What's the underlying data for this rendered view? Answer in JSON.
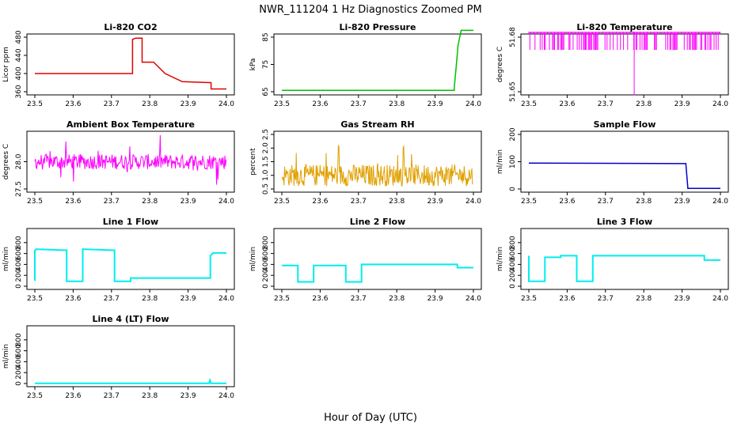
{
  "page": {
    "title": "NWR_111204  1 Hz Diagnostics Zoomed PM",
    "xlabel": "Hour of Day (UTC)"
  },
  "colors": {
    "red": "#e00000",
    "green": "#00c000",
    "magenta": "#ff00ff",
    "orange": "#e0a000",
    "blue": "#0000cc",
    "cyan": "#00eeee"
  },
  "chart_data": [
    {
      "type": "line",
      "title": "Li-820 CO2",
      "ylabel": "Licor ppm",
      "xlim": [
        23.5,
        24.0
      ],
      "ylim": [
        360,
        480
      ],
      "xticks": [
        "23.5",
        "23.6",
        "23.7",
        "23.8",
        "23.9",
        "24.0"
      ],
      "yticks": [
        "360",
        "400",
        "440",
        "480"
      ],
      "color": "#e00000",
      "series": [
        {
          "x": [
            23.5,
            23.755,
            23.755,
            23.763,
            23.763,
            23.78,
            23.78,
            23.81,
            23.81,
            23.84,
            23.84,
            23.885,
            23.885,
            23.96,
            23.96,
            24.0
          ],
          "y": [
            400,
            400,
            475,
            478,
            478,
            478,
            425,
            425,
            425,
            400,
            400,
            382,
            382,
            380,
            366,
            366
          ]
        }
      ]
    },
    {
      "type": "line",
      "title": "Li-820 Pressure",
      "ylabel": "kPa",
      "xlim": [
        23.5,
        24.0
      ],
      "ylim": [
        65,
        85
      ],
      "xticks": [
        "23.5",
        "23.6",
        "23.7",
        "23.8",
        "23.9",
        "24.0"
      ],
      "yticks": [
        "65",
        "75",
        "85"
      ],
      "color": "#00c000",
      "series": [
        {
          "x": [
            23.5,
            23.95,
            23.95,
            23.955,
            23.96,
            23.968,
            24.0
          ],
          "y": [
            65.5,
            65.5,
            66.5,
            74,
            82,
            87.5,
            87.5
          ]
        }
      ]
    },
    {
      "type": "line",
      "title": "Li-820 Temperature",
      "ylabel": "degrees C",
      "xlim": [
        23.5,
        24.0
      ],
      "ylim": [
        51.65,
        51.68
      ],
      "xticks": [
        "23.5",
        "23.6",
        "23.7",
        "23.8",
        "23.9",
        "24.0"
      ],
      "yticks": [
        "51.65",
        "51.68"
      ],
      "color": "#ff00ff",
      "series": [
        {
          "x": [
            23.5,
            23.6,
            23.7,
            23.775,
            23.775,
            23.8,
            23.9,
            24.0
          ],
          "y": [
            51.683,
            51.683,
            51.683,
            51.683,
            51.648,
            51.683,
            51.683,
            51.683
          ]
        }
      ]
    },
    {
      "type": "line",
      "title": "Ambient Box Temperature",
      "ylabel": "degrees C",
      "xlim": [
        23.5,
        24.0
      ],
      "ylim": [
        27.5,
        28.5
      ],
      "xticks": [
        "23.5",
        "23.6",
        "23.7",
        "23.8",
        "23.9",
        "24.0"
      ],
      "yticks": [
        "27.5",
        "28.0"
      ],
      "color": "#ff00ff",
      "series": [
        {
          "x": [
            23.5,
            23.6,
            23.7,
            23.8,
            23.9,
            24.0
          ],
          "y": [
            28.0,
            28.0,
            28.0,
            28.0,
            28.0,
            28.0
          ]
        }
      ]
    },
    {
      "type": "line",
      "title": "Gas Stream RH",
      "ylabel": "percent",
      "xlim": [
        23.5,
        24.0
      ],
      "ylim": [
        0.5,
        2.5
      ],
      "xticks": [
        "23.5",
        "23.6",
        "23.7",
        "23.8",
        "23.9",
        "24.0"
      ],
      "yticks": [
        "0.5",
        "1.0",
        "1.5",
        "2.0",
        "2.5"
      ],
      "color": "#e0a000",
      "series": [
        {
          "x": [
            23.5,
            23.6,
            23.7,
            23.8,
            23.9,
            24.0
          ],
          "y": [
            1.0,
            1.0,
            1.0,
            1.0,
            1.0,
            1.0
          ]
        }
      ]
    },
    {
      "type": "line",
      "title": "Sample Flow",
      "ylabel": "ml/min",
      "xlim": [
        23.5,
        24.0
      ],
      "ylim": [
        0,
        200
      ],
      "xticks": [
        "23.5",
        "23.6",
        "23.7",
        "23.8",
        "23.9",
        "24.0"
      ],
      "yticks": [
        "0",
        "100",
        "200"
      ],
      "color": "#0000cc",
      "series": [
        {
          "x": [
            23.5,
            23.91,
            23.91,
            23.915,
            24.0
          ],
          "y": [
            95,
            93,
            90,
            2,
            2
          ]
        }
      ]
    },
    {
      "type": "line",
      "title": "Line 1 Flow",
      "ylabel": "ml/min",
      "xlim": [
        23.5,
        24.0
      ],
      "ylim": [
        0,
        1000
      ],
      "xticks": [
        "23.5",
        "23.6",
        "23.7",
        "23.8",
        "23.9",
        "24.0"
      ],
      "yticks": [
        "0",
        "200",
        "400",
        "600",
        "800"
      ],
      "color": "#00eeee",
      "series": [
        {
          "x": [
            23.5,
            23.5,
            23.503,
            23.583,
            23.583,
            23.625,
            23.625,
            23.708,
            23.708,
            23.75,
            23.75,
            23.958,
            23.958,
            23.965,
            24.0
          ],
          "y": [
            100,
            650,
            680,
            660,
            90,
            90,
            680,
            660,
            90,
            90,
            150,
            150,
            560,
            610,
            610
          ]
        }
      ]
    },
    {
      "type": "line",
      "title": "Line 2 Flow",
      "ylabel": "ml/min",
      "xlim": [
        23.5,
        24.0
      ],
      "ylim": [
        0,
        1000
      ],
      "xticks": [
        "23.5",
        "23.6",
        "23.7",
        "23.8",
        "23.9",
        "24.0"
      ],
      "yticks": [
        "0",
        "200",
        "400",
        "600",
        "800"
      ],
      "color": "#00eeee",
      "series": [
        {
          "x": [
            23.5,
            23.542,
            23.542,
            23.583,
            23.583,
            23.667,
            23.667,
            23.708,
            23.708,
            23.958,
            23.958,
            24.0
          ],
          "y": [
            380,
            380,
            80,
            80,
            380,
            380,
            80,
            80,
            400,
            400,
            340,
            340
          ]
        }
      ]
    },
    {
      "type": "line",
      "title": "Line 3 Flow",
      "ylabel": "ml/min",
      "xlim": [
        23.5,
        24.0
      ],
      "ylim": [
        0,
        1000
      ],
      "xticks": [
        "23.5",
        "23.6",
        "23.7",
        "23.8",
        "23.9",
        "24.0"
      ],
      "yticks": [
        "0",
        "200",
        "400",
        "600",
        "800"
      ],
      "color": "#00eeee",
      "series": [
        {
          "x": [
            23.5,
            23.5,
            23.542,
            23.542,
            23.583,
            23.583,
            23.625,
            23.625,
            23.667,
            23.667,
            23.958,
            23.958,
            24.0
          ],
          "y": [
            560,
            90,
            90,
            530,
            530,
            560,
            560,
            90,
            90,
            560,
            560,
            480,
            480
          ]
        }
      ]
    },
    {
      "type": "line",
      "title": "Line 4 (LT) Flow",
      "ylabel": "ml/min",
      "xlim": [
        23.5,
        24.0
      ],
      "ylim": [
        0,
        1000
      ],
      "xticks": [
        "23.5",
        "23.6",
        "23.7",
        "23.8",
        "23.9",
        "24.0"
      ],
      "yticks": [
        "0",
        "200",
        "400",
        "600",
        "800"
      ],
      "color": "#00eeee",
      "series": [
        {
          "x": [
            23.5,
            23.955,
            23.957,
            23.96,
            24.0
          ],
          "y": [
            5,
            5,
            60,
            5,
            5
          ]
        }
      ]
    }
  ]
}
